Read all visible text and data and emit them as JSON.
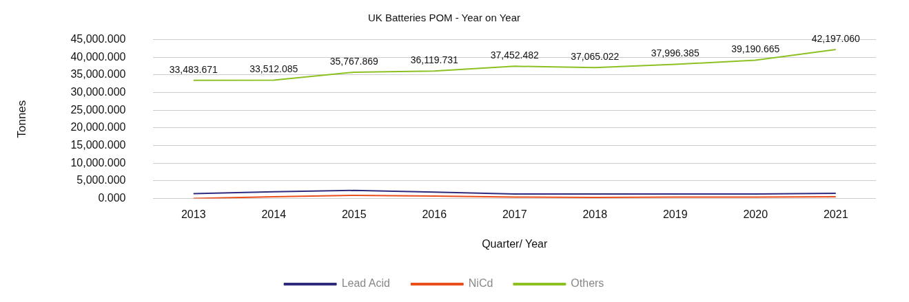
{
  "chart_data": {
    "type": "line",
    "title": "UK Batteries POM - Year on Year",
    "xlabel": "Quarter/ Year",
    "ylabel": "Tonnes",
    "categories": [
      "2013",
      "2014",
      "2015",
      "2016",
      "2017",
      "2018",
      "2019",
      "2020",
      "2021"
    ],
    "ylim": [
      0,
      45000
    ],
    "yticks": [
      {
        "value": 0,
        "label": "0.000"
      },
      {
        "value": 5000,
        "label": "5,000.000"
      },
      {
        "value": 10000,
        "label": "10,000.000"
      },
      {
        "value": 15000,
        "label": "15,000.000"
      },
      {
        "value": 20000,
        "label": "20,000.000"
      },
      {
        "value": 25000,
        "label": "25,000.000"
      },
      {
        "value": 30000,
        "label": "30,000.000"
      },
      {
        "value": 35000,
        "label": "35,000.000"
      },
      {
        "value": 40000,
        "label": "40,000.000"
      },
      {
        "value": 45000,
        "label": "45,000.000"
      }
    ],
    "grid": "y",
    "legend": "bottom",
    "marker": "none",
    "line_style": "solid",
    "series": [
      {
        "name": "Lead Acid",
        "color": "#2e2a7e",
        "values": [
          1400,
          1900,
          2300,
          1800,
          1300,
          1300,
          1300,
          1300,
          1500
        ]
      },
      {
        "name": "NiCd",
        "color": "#ea4e1b",
        "values": [
          0,
          500,
          900,
          700,
          400,
          300,
          400,
          400,
          500
        ]
      },
      {
        "name": "Others",
        "color": "#8dc021",
        "values": [
          33483.671,
          33512.085,
          35767.869,
          36119.731,
          37452.482,
          37065.022,
          37996.385,
          39190.665,
          42197.06
        ],
        "value_labels": [
          "33,483.671",
          "33,512.085",
          "35,767.869",
          "36,119.731",
          "37,452.482",
          "37,065.022",
          "37,996.385",
          "39,190.665",
          "42,197.060"
        ]
      }
    ]
  }
}
